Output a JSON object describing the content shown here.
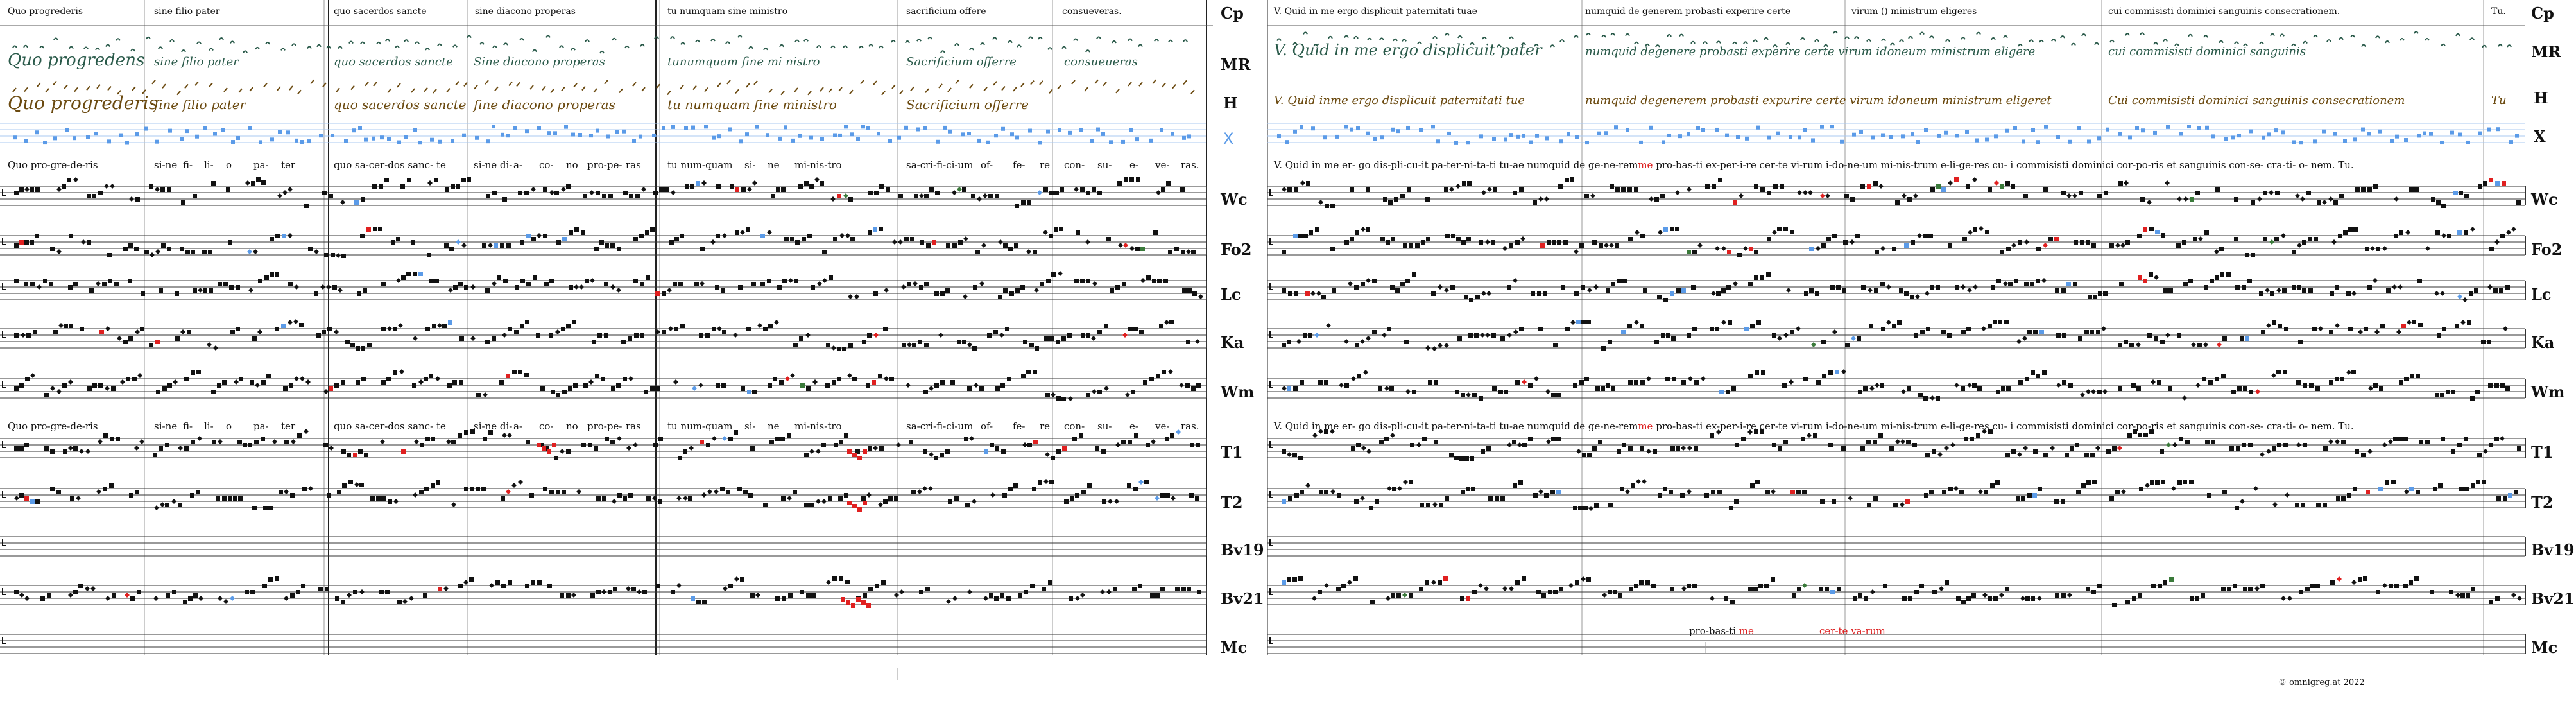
{
  "left_panel": {
    "header_phrases": [
      "Quo progrederis",
      "sine filio pater",
      "quo sacerdos sancte",
      "sine diacono properas",
      "tu numquam sine ministro",
      "sacrificium offere",
      "consueveras."
    ],
    "syllables_1": [
      "Quo pro-gre-de-ris",
      "si-ne",
      "fi-",
      "li-",
      "o",
      "pa-",
      "ter",
      "quo sa-cer-dos sanc-",
      "te",
      "si-ne di-",
      "a-",
      "co-",
      "no",
      "pro-pe-",
      "ras",
      "tu num-quam",
      "si-",
      "ne",
      "mi-nis-tro",
      "sa-cri-fi-ci-um",
      "of-",
      "fe-",
      "re",
      "con-",
      "su-",
      "e-",
      "ve-",
      "ras."
    ],
    "syllables_2": [
      "Quo pro-gre-de-ris",
      "si-ne",
      "fi-",
      "li-",
      "o",
      "pa-",
      "ter",
      "quo sa-cer-dos sanc-",
      "te",
      "si-ne di-",
      "a-",
      "co-",
      "no",
      "pro-pe-",
      "ras",
      "tu num-quam",
      "si-",
      "ne",
      "mi-nis-tro",
      "sa-cri-fi-ci-um",
      "of-",
      "fe-",
      "re",
      "con-",
      "su-",
      "e-",
      "ve-",
      "ras."
    ]
  },
  "right_panel": {
    "header_phrases": [
      "V. Quid in me ergo displicuit paternitati tuae",
      "numquid de generem probasti experire certe",
      "virum () ministrum eligeres",
      "cui commisisti dominici sanguinis consecrationem.",
      "Tu."
    ],
    "syllables_1": "V. Quid  in  me  er-  go       dis-pli-cu-it  pa-ter-ni-ta-ti  tu-ae      numquid  de  ge-ne-rem",
    "syllables_1_red": "me",
    "syllables_1_rest": " pro-bas-ti  ex-per-i-re  cer-te  vi-rum  i-do-ne-um   mi-nis-trum  e-li-ge-res        cu-  i  commisisti  dominici   cor-po-ris  et  sanguinis   con-se-     cra-ti-   o-          nem.       Tu.",
    "syllables_2": "V. Quid  in  me  er-  go       dis-pli-cu-it  pa-ter-ni-ta-ti  tu-ae      numquid  de  ge-ne-rem",
    "syllables_2_red": "me",
    "syllables_2_rest": " pro-bas-ti  ex-per-i-re  cer-te  vi-rum  i-do-ne-um   mi-nis-trum  e-li-ge-res        cu-  i  commisisti  dominici   cor-po-ris  et  sanguinis   con-se-     cra-ti-   o-          nem.       Tu.",
    "variant_1": "pro-bas-ti",
    "variant_1_red": "me",
    "variant_2": "cer-te va-rum"
  },
  "row_labels": [
    "Cp",
    "MR",
    "H",
    "X",
    "Wc",
    "Fo2",
    "Lc",
    "Ka",
    "Wm",
    "T1",
    "T2",
    "Bv19",
    "Bv21",
    "Mc"
  ],
  "manuscript_lines": {
    "MR_left": [
      "Quo progredens",
      "sine filio pater",
      "quo sacerdos sancte",
      "Sine diacono properas",
      "tunumquam fine mi nistro",
      "Sacrificium offerre",
      "consueueras"
    ],
    "H_left": [
      "Quo progrederis",
      "fine filio  pater",
      "quo sacerdos sancte",
      "fine diacono  properas",
      "tu numquam fine ministro",
      "Sacrificium  offerre"
    ],
    "MR_right": [
      "V. Quid in me ergo displicuit  pater",
      "numquid degenere probasti experire certe virum idoneum ministrum eligere",
      "cui commisisti dominici sanguinis"
    ],
    "H_right": [
      "V. Quid inme ergo displicuit paternitati tue",
      "numquid degenerem probasti expurire certe virum idoneum ministrum eligeret",
      "Cui commisisti dominici sanguinis consecrationem",
      "Tu"
    ]
  },
  "copyright": "© omnigreg.at   2022",
  "colors": {
    "note": "#111111",
    "red": "#e02020",
    "blue": "#5b9be8",
    "green": "#3a7a3a",
    "mr_ink": "#2a5a4a",
    "h_ink": "#6b4a10",
    "grey": "#999999"
  }
}
